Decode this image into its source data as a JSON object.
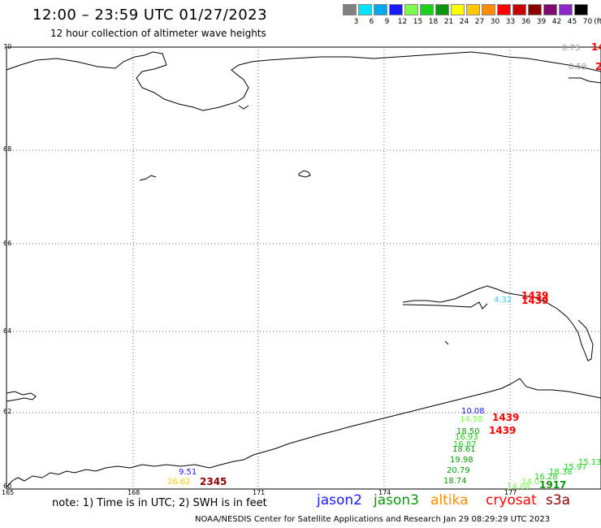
{
  "header": {
    "title": "12:00 – 23:59 UTC 01/27/2023",
    "subtitle": "12 hour collection of altimeter wave heights"
  },
  "colorbar": {
    "colors": [
      "#808080",
      "#00e5ff",
      "#00a8f0",
      "#1a1aff",
      "#7cfc4c",
      "#19d219",
      "#0a960a",
      "#ffff00",
      "#ffc800",
      "#ff8c00",
      "#ff0000",
      "#c80000",
      "#8c0000",
      "#7a0a6e",
      "#8c28c8",
      "#000000"
    ],
    "ticks": [
      "3",
      "6",
      "9",
      "12",
      "15",
      "18",
      "21",
      "24",
      "27",
      "30",
      "33",
      "36",
      "39",
      "42",
      "45",
      "70"
    ],
    "unit": "(ft)"
  },
  "axes": {
    "lat_labels": [
      "70",
      "68",
      "66",
      "64",
      "62",
      "60"
    ],
    "lon_labels": [
      "165",
      "168",
      "171",
      "174",
      "177"
    ]
  },
  "observations": [
    {
      "text": "0.73",
      "color": "#999999"
    },
    {
      "text": "14",
      "color": "#ff0000"
    },
    {
      "text": "0.59",
      "color": "#999999"
    },
    {
      "text": "2",
      "color": "#ff0000"
    },
    {
      "text": "1439",
      "color": "#ff0000"
    },
    {
      "text": "1439",
      "color": "#ff0000"
    },
    {
      "text": "4.32",
      "color": "#33ccff"
    },
    {
      "text": "10.08",
      "color": "#1a1aff"
    },
    {
      "text": "14.58",
      "color": "#7cfc4c"
    },
    {
      "text": "1439",
      "color": "#ff0000"
    },
    {
      "text": "1439",
      "color": "#ff0000"
    },
    {
      "text": "18.50",
      "color": "#0a960a"
    },
    {
      "text": "16.93",
      "color": "#19d219"
    },
    {
      "text": "16.87",
      "color": "#19d219"
    },
    {
      "text": "18.61",
      "color": "#0a960a"
    },
    {
      "text": "19.98",
      "color": "#0a960a"
    },
    {
      "text": "20.79",
      "color": "#0a960a"
    },
    {
      "text": "18.74",
      "color": "#0a960a"
    },
    {
      "text": "9.51",
      "color": "#1a1aff"
    },
    {
      "text": "26.62",
      "color": "#ffc800"
    },
    {
      "text": "2345",
      "color": "#8c0000"
    },
    {
      "text": "14.88",
      "color": "#7cfc4c"
    },
    {
      "text": "14.0",
      "color": "#7cfc4c"
    },
    {
      "text": "16.28",
      "color": "#19d219"
    },
    {
      "text": "18.38",
      "color": "#19d219"
    },
    {
      "text": "15.97",
      "color": "#19d219"
    },
    {
      "text": "15.13",
      "color": "#19d219"
    },
    {
      "text": "1917",
      "color": "#0a960a"
    }
  ],
  "footer": {
    "note": "note: 1) Time is in UTC; 2) SWH is in feet",
    "legend": [
      {
        "text": "jason2",
        "color": "#1a1aff"
      },
      {
        "text": "jason3",
        "color": "#0a960a"
      },
      {
        "text": "altika",
        "color": "#ff8c00"
      },
      {
        "text": "cryosat",
        "color": "#ff0000"
      },
      {
        "text": "s3a",
        "color": "#8c0000"
      }
    ],
    "credit": "NOAA/NESDIS Center for Satellite Applications and Research    Jan 29 08:29:29 UTC 2023"
  }
}
